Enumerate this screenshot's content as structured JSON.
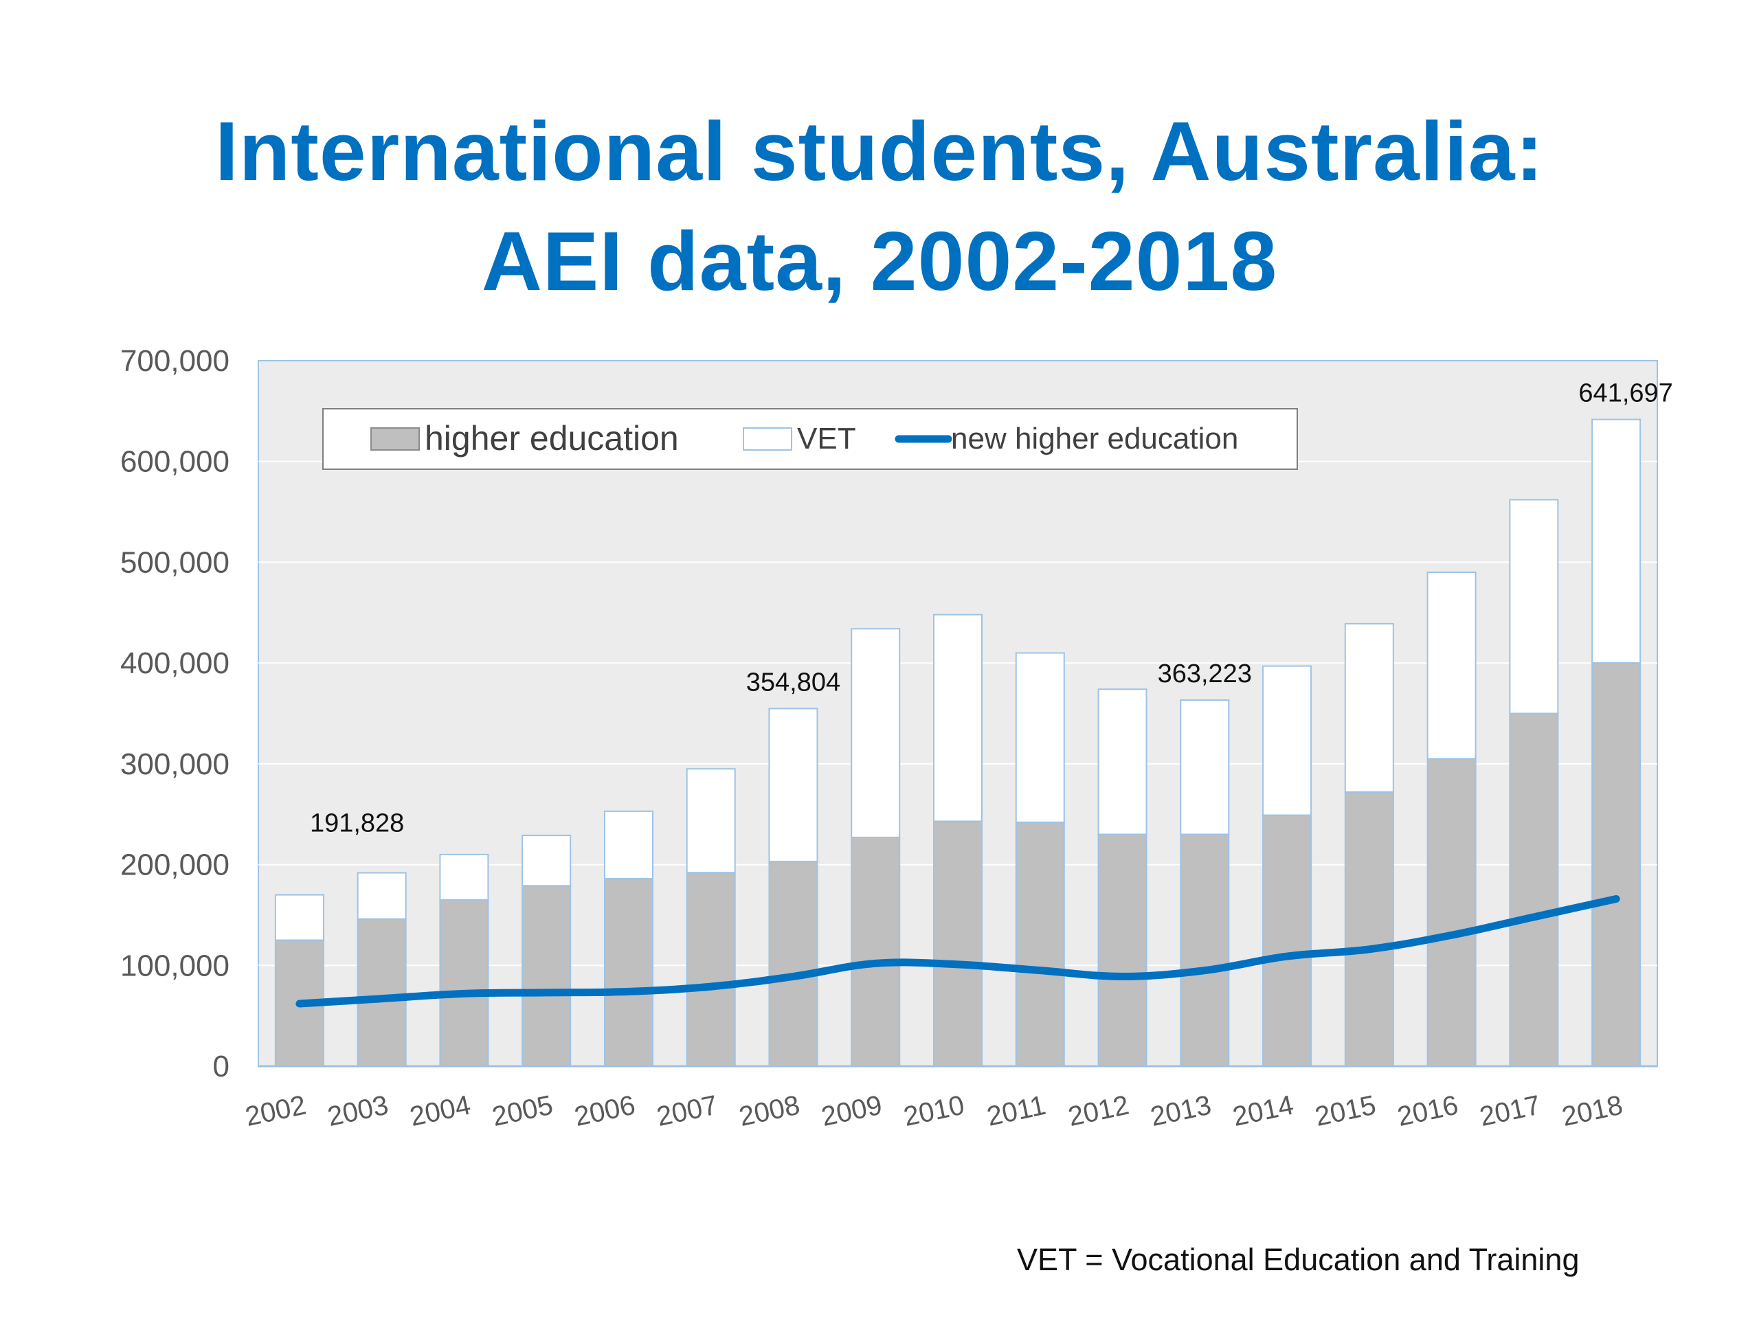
{
  "title": {
    "line1": "International students, Australia:",
    "line2": "AEI data, 2002-2018"
  },
  "footnote": "VET = Vocational Education and Training",
  "colors": {
    "title": "#0070c0",
    "higher_education": "#bfbfbf",
    "vet": "#ffffff",
    "new_higher_education": "#0070c0",
    "plot_background": "#ececec",
    "bar_outline": "#9dc3e6"
  },
  "chart_data": {
    "type": "bar",
    "stacked": true,
    "categories": [
      "2002",
      "2003",
      "2004",
      "2005",
      "2006",
      "2007",
      "2008",
      "2009",
      "2010",
      "2011",
      "2012",
      "2013",
      "2014",
      "2015",
      "2016",
      "2017",
      "2018"
    ],
    "series": [
      {
        "name": "higher education",
        "type": "bar",
        "color": "#bfbfbf",
        "values": [
          125000,
          146000,
          165000,
          179000,
          186000,
          192000,
          203000,
          227000,
          243000,
          242000,
          230000,
          230000,
          249000,
          272000,
          305000,
          350000,
          400000
        ]
      },
      {
        "name": "VET",
        "type": "bar",
        "color": "#ffffff",
        "values": [
          45000,
          45828,
          45000,
          50000,
          67000,
          103000,
          151804,
          207000,
          205000,
          168000,
          144000,
          133223,
          148000,
          167000,
          185000,
          212000,
          241697
        ]
      },
      {
        "name": "new higher education",
        "type": "line",
        "color": "#0070c0",
        "values": [
          62000,
          67000,
          72000,
          73000,
          74000,
          79000,
          89000,
          102000,
          101000,
          95000,
          89000,
          95000,
          109000,
          116000,
          130000,
          148000,
          166000
        ]
      }
    ],
    "data_labels": [
      {
        "category": "2003",
        "text": "191,828"
      },
      {
        "category": "2008",
        "text": "354,804"
      },
      {
        "category": "2013",
        "text": "363,223"
      },
      {
        "category": "2018",
        "text": "641,697"
      }
    ],
    "yticks": [
      "0",
      "100,000",
      "200,000",
      "300,000",
      "400,000",
      "500,000",
      "600,000",
      "700,000"
    ],
    "ylim": [
      0,
      700000
    ],
    "xlabel": "",
    "ylabel": "",
    "grid": true,
    "legend": "top-left inside plot"
  }
}
